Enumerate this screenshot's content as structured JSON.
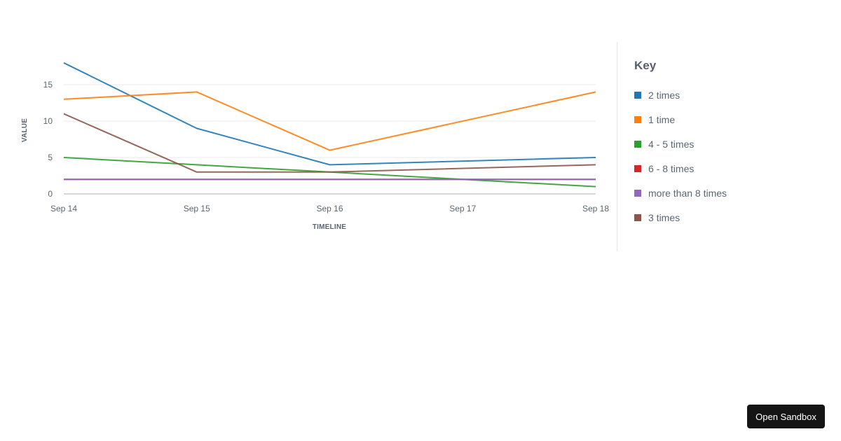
{
  "chart_data": {
    "type": "line",
    "title": "",
    "xlabel": "TIMELINE",
    "ylabel": "VALUE",
    "x": [
      "Sep 14",
      "Sep 15",
      "Sep 16",
      "Sep 18"
    ],
    "x_ticks": [
      "Sep 14",
      "Sep 15",
      "Sep 16",
      "Sep 17",
      "Sep 18"
    ],
    "y_ticks": [
      0,
      5,
      10,
      15
    ],
    "ylim": [
      0,
      18
    ],
    "grid": true,
    "legend_position": "right",
    "series": [
      {
        "name": "2 times",
        "color": "#1f77b4",
        "values": [
          18,
          9,
          4,
          5
        ]
      },
      {
        "name": "1 time",
        "color": "#ff7f0e",
        "values": [
          13,
          14,
          6,
          14
        ]
      },
      {
        "name": "4 - 5 times",
        "color": "#2ca02c",
        "values": [
          5,
          4,
          3,
          1
        ]
      },
      {
        "name": "6 - 8 times",
        "color": "#d62728",
        "values": [
          2,
          2,
          2,
          2
        ]
      },
      {
        "name": "more than 8 times",
        "color": "#9467bd",
        "values": [
          2,
          2,
          2,
          2
        ]
      },
      {
        "name": "3 times",
        "color": "#8c564b",
        "values": [
          11,
          3,
          3,
          4
        ]
      }
    ]
  },
  "legend": {
    "title": "Key",
    "items": [
      {
        "label": "2 times",
        "color": "#1f77b4"
      },
      {
        "label": "1 time",
        "color": "#ff7f0e"
      },
      {
        "label": "4 - 5 times",
        "color": "#2ca02c"
      },
      {
        "label": "6 - 8 times",
        "color": "#d62728"
      },
      {
        "label": "more than 8 times",
        "color": "#9467bd"
      },
      {
        "label": "3 times",
        "color": "#8c564b"
      }
    ]
  },
  "footer": {
    "open_sandbox_label": "Open Sandbox"
  }
}
